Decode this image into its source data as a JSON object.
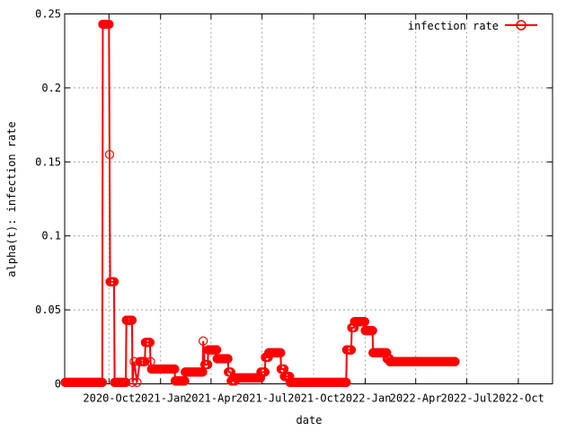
{
  "chart_data": {
    "type": "line",
    "title": "",
    "xlabel": "date",
    "ylabel": "alpha(t): infection rate",
    "xlim": [
      "2020-07-14",
      "2022-12-01"
    ],
    "ylim": [
      0,
      0.25
    ],
    "grid": true,
    "legend_position": "top-right",
    "x_tick_labels": [
      "2020-Oct",
      "2021-Jan",
      "2021-Apr",
      "2021-Jul",
      "2021-Oct",
      "2022-Jan",
      "2022-Apr",
      "2022-Jul",
      "2022-Oct"
    ],
    "x_tick_dates": [
      "2020-10-01",
      "2021-01-01",
      "2021-04-01",
      "2021-07-01",
      "2021-10-01",
      "2022-01-01",
      "2022-04-01",
      "2022-07-01",
      "2022-10-01"
    ],
    "y_ticks": [
      0,
      0.05,
      0.1,
      0.15,
      0.2,
      0.25
    ],
    "y_tick_labels": [
      "0",
      "0.05",
      "0.1",
      "0.15",
      "0.2",
      "0.25"
    ],
    "series": [
      {
        "name": "infection rate",
        "color": "#ff0000",
        "marker": "circle",
        "points": [
          [
            "2020-07-15",
            0.001
          ],
          [
            "2020-09-19",
            0.001
          ],
          [
            "2020-09-20",
            0.243
          ],
          [
            "2020-10-01",
            0.243
          ],
          [
            "2020-10-02",
            0.155
          ],
          [
            "2020-10-03",
            0.069
          ],
          [
            "2020-10-10",
            0.069
          ],
          [
            "2020-10-11",
            0.001
          ],
          [
            "2020-10-31",
            0.001
          ],
          [
            "2020-11-01",
            0.043
          ],
          [
            "2020-11-11",
            0.043
          ],
          [
            "2020-11-12",
            0.001
          ],
          [
            "2020-11-15",
            0.015
          ],
          [
            "2020-11-20",
            0.001
          ],
          [
            "2020-11-25",
            0.015
          ],
          [
            "2020-12-04",
            0.015
          ],
          [
            "2020-12-05",
            0.028
          ],
          [
            "2020-12-13",
            0.028
          ],
          [
            "2020-12-14",
            0.015
          ],
          [
            "2020-12-16",
            0.01
          ],
          [
            "2021-01-26",
            0.01
          ],
          [
            "2021-01-27",
            0.002
          ],
          [
            "2021-02-13",
            0.002
          ],
          [
            "2021-02-14",
            0.008
          ],
          [
            "2021-03-17",
            0.008
          ],
          [
            "2021-03-18",
            0.029
          ],
          [
            "2021-03-21",
            0.013
          ],
          [
            "2021-03-26",
            0.013
          ],
          [
            "2021-03-27",
            0.023
          ],
          [
            "2021-04-11",
            0.023
          ],
          [
            "2021-04-12",
            0.017
          ],
          [
            "2021-05-01",
            0.017
          ],
          [
            "2021-05-02",
            0.008
          ],
          [
            "2021-05-06",
            0.008
          ],
          [
            "2021-05-07",
            0.002
          ],
          [
            "2021-05-14",
            0.002
          ],
          [
            "2021-05-15",
            0.004
          ],
          [
            "2021-06-28",
            0.004
          ],
          [
            "2021-06-29",
            0.008
          ],
          [
            "2021-07-06",
            0.008
          ],
          [
            "2021-07-07",
            0.018
          ],
          [
            "2021-07-12",
            0.018
          ],
          [
            "2021-07-13",
            0.021
          ],
          [
            "2021-08-03",
            0.021
          ],
          [
            "2021-08-04",
            0.01
          ],
          [
            "2021-08-09",
            0.01
          ],
          [
            "2021-08-10",
            0.005
          ],
          [
            "2021-08-19",
            0.005
          ],
          [
            "2021-08-20",
            0.001
          ],
          [
            "2021-11-28",
            0.001
          ],
          [
            "2021-11-29",
            0.023
          ],
          [
            "2021-12-07",
            0.023
          ],
          [
            "2021-12-08",
            0.038
          ],
          [
            "2021-12-12",
            0.038
          ],
          [
            "2021-12-13",
            0.042
          ],
          [
            "2021-12-31",
            0.042
          ],
          [
            "2022-01-01",
            0.036
          ],
          [
            "2022-01-14",
            0.036
          ],
          [
            "2022-01-15",
            0.021
          ],
          [
            "2022-02-08",
            0.021
          ],
          [
            "2022-02-09",
            0.017
          ],
          [
            "2022-02-13",
            0.017
          ],
          [
            "2022-02-14",
            0.015
          ],
          [
            "2022-06-10",
            0.015
          ]
        ]
      }
    ]
  }
}
